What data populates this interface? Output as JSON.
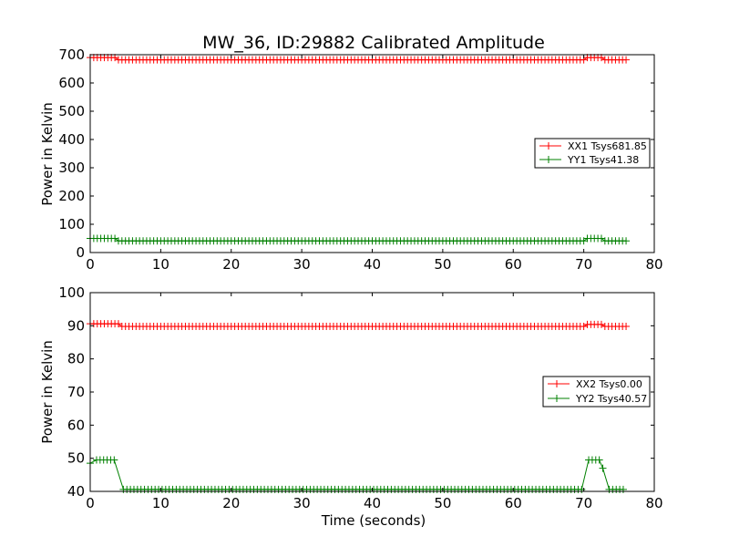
{
  "chart_data": [
    {
      "type": "line",
      "title": "MW_36, ID:29882 Calibrated Amplitude",
      "xlabel": "",
      "ylabel": "Power in Kelvin",
      "xlim": [
        0,
        80
      ],
      "ylim": [
        0,
        700
      ],
      "xticks": [
        "0",
        "10",
        "20",
        "30",
        "40",
        "50",
        "60",
        "70",
        "80"
      ],
      "yticks": [
        "0",
        "100",
        "200",
        "300",
        "400",
        "500",
        "600",
        "700"
      ],
      "legend_position": "right",
      "grid": false,
      "series": [
        {
          "name": "XX1 Tsys681.85",
          "color": "#ff0000",
          "segments": [
            {
              "x0": 0,
              "x1": 3.5,
              "y": 690
            },
            {
              "x0": 3.5,
              "x1": 70,
              "y": 682
            },
            {
              "x0": 70,
              "x1": 72.5,
              "y": 690
            },
            {
              "x0": 72.5,
              "x1": 76,
              "y": 682
            }
          ]
        },
        {
          "name": "YY1 Tsys41.38",
          "color": "#008000",
          "segments": [
            {
              "x0": 0,
              "x1": 3.5,
              "y": 50
            },
            {
              "x0": 3.5,
              "x1": 70,
              "y": 41
            },
            {
              "x0": 70,
              "x1": 72.5,
              "y": 50
            },
            {
              "x0": 72.5,
              "x1": 76,
              "y": 41
            }
          ]
        }
      ]
    },
    {
      "type": "line",
      "title": "",
      "xlabel": "Time (seconds)",
      "ylabel": "Power in Kelvin",
      "xlim": [
        0,
        80
      ],
      "ylim": [
        40,
        100
      ],
      "xticks": [
        "0",
        "10",
        "20",
        "30",
        "40",
        "50",
        "60",
        "70",
        "80"
      ],
      "yticks": [
        "40",
        "50",
        "60",
        "70",
        "80",
        "90",
        "100"
      ],
      "legend_position": "right",
      "grid": false,
      "series": [
        {
          "name": "XX2 Tsys0.00",
          "color": "#ff0000",
          "segments": [
            {
              "x0": 0,
              "x1": 4,
              "y": 90.6
            },
            {
              "x0": 4,
              "x1": 70,
              "y": 89.8
            },
            {
              "x0": 70,
              "x1": 72.5,
              "y": 90.4
            },
            {
              "x0": 72.5,
              "x1": 76,
              "y": 89.8
            }
          ]
        },
        {
          "name": "YY2 Tsys40.57",
          "color": "#008000",
          "segments": [
            {
              "x0": 0,
              "x1": 0.4,
              "y": 48.5
            },
            {
              "x0": 0.4,
              "x1": 3.8,
              "y": 49.5
            },
            {
              "x0": 3.8,
              "x1": 4.2,
              "y": 43
            },
            {
              "x0": 4.2,
              "x1": 69.8,
              "y": 40.6
            },
            {
              "x0": 69.8,
              "x1": 70.2,
              "y": 40.6
            },
            {
              "x0": 70.2,
              "x1": 72.2,
              "y": 49.5
            },
            {
              "x0": 72.2,
              "x1": 72.7,
              "y": 47
            },
            {
              "x0": 72.7,
              "x1": 73.1,
              "y": 43
            },
            {
              "x0": 73.1,
              "x1": 76,
              "y": 40.6
            }
          ]
        }
      ]
    }
  ]
}
